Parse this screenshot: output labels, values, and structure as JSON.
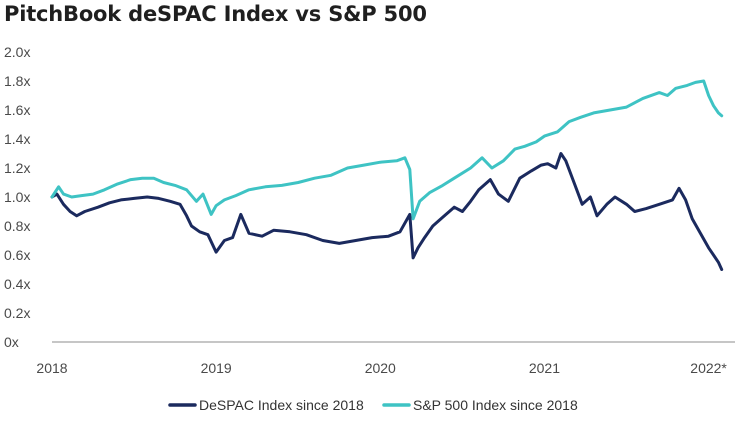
{
  "chart_data": {
    "type": "line",
    "title": "PitchBook deSPAC Index vs S&P 500",
    "xlabel": "",
    "ylabel": "",
    "xlim": [
      2018.0,
      2022.1
    ],
    "ylim": [
      0,
      2.0
    ],
    "y_ticks": [
      {
        "value": 0.0,
        "label": "0x"
      },
      {
        "value": 0.2,
        "label": "0.2x"
      },
      {
        "value": 0.4,
        "label": "0.4x"
      },
      {
        "value": 0.6,
        "label": "0.6x"
      },
      {
        "value": 0.8,
        "label": "0.8x"
      },
      {
        "value": 1.0,
        "label": "1.0x"
      },
      {
        "value": 1.2,
        "label": "1.2x"
      },
      {
        "value": 1.4,
        "label": "1.4x"
      },
      {
        "value": 1.6,
        "label": "1.6x"
      },
      {
        "value": 1.8,
        "label": "1.8x"
      },
      {
        "value": 2.0,
        "label": "2.0x"
      }
    ],
    "x_ticks": [
      {
        "value": 2018,
        "label": "2018"
      },
      {
        "value": 2019,
        "label": "2019"
      },
      {
        "value": 2020,
        "label": "2020"
      },
      {
        "value": 2021,
        "label": "2021"
      },
      {
        "value": 2022,
        "label": "2022*"
      }
    ],
    "grid": false,
    "legend_position": "bottom-center",
    "series": [
      {
        "name": "DeSPAC Index since 2018",
        "color": "#1b2a5e",
        "x": [
          2018.0,
          2018.03,
          2018.07,
          2018.11,
          2018.15,
          2018.2,
          2018.28,
          2018.35,
          2018.42,
          2018.5,
          2018.58,
          2018.65,
          2018.72,
          2018.78,
          2018.82,
          2018.85,
          2018.9,
          2018.95,
          2019.0,
          2019.05,
          2019.1,
          2019.15,
          2019.2,
          2019.28,
          2019.35,
          2019.45,
          2019.55,
          2019.65,
          2019.75,
          2019.85,
          2019.95,
          2020.05,
          2020.12,
          2020.18,
          2020.2,
          2020.23,
          2020.27,
          2020.32,
          2020.38,
          2020.45,
          2020.5,
          2020.55,
          2020.6,
          2020.67,
          2020.72,
          2020.78,
          2020.85,
          2020.92,
          2020.98,
          2021.02,
          2021.07,
          2021.1,
          2021.13,
          2021.18,
          2021.23,
          2021.28,
          2021.32,
          2021.38,
          2021.43,
          2021.5,
          2021.55,
          2021.62,
          2021.7,
          2021.78,
          2021.82,
          2021.86,
          2021.9,
          2021.95,
          2022.0,
          2022.03,
          2022.06,
          2022.08
        ],
        "values": [
          1.0,
          1.02,
          0.95,
          0.9,
          0.87,
          0.9,
          0.93,
          0.96,
          0.98,
          0.99,
          1.0,
          0.99,
          0.97,
          0.95,
          0.87,
          0.8,
          0.76,
          0.74,
          0.62,
          0.7,
          0.72,
          0.88,
          0.75,
          0.73,
          0.77,
          0.76,
          0.74,
          0.7,
          0.68,
          0.7,
          0.72,
          0.73,
          0.76,
          0.88,
          0.58,
          0.65,
          0.72,
          0.8,
          0.86,
          0.93,
          0.9,
          0.97,
          1.05,
          1.12,
          1.02,
          0.97,
          1.13,
          1.18,
          1.22,
          1.23,
          1.2,
          1.3,
          1.25,
          1.1,
          0.95,
          1.0,
          0.87,
          0.95,
          1.0,
          0.95,
          0.9,
          0.92,
          0.95,
          0.98,
          1.06,
          0.98,
          0.85,
          0.75,
          0.65,
          0.6,
          0.55,
          0.5
        ]
      },
      {
        "name": "S&P 500 Index since 2018",
        "color": "#3ec3c4",
        "x": [
          2018.0,
          2018.04,
          2018.07,
          2018.12,
          2018.18,
          2018.25,
          2018.32,
          2018.4,
          2018.48,
          2018.55,
          2018.62,
          2018.68,
          2018.75,
          2018.82,
          2018.88,
          2018.92,
          2018.97,
          2019.0,
          2019.05,
          2019.12,
          2019.2,
          2019.3,
          2019.4,
          2019.5,
          2019.6,
          2019.7,
          2019.8,
          2019.9,
          2020.0,
          2020.1,
          2020.15,
          2020.18,
          2020.2,
          2020.24,
          2020.3,
          2020.38,
          2020.45,
          2020.55,
          2020.62,
          2020.68,
          2020.75,
          2020.82,
          2020.88,
          2020.95,
          2021.0,
          2021.08,
          2021.15,
          2021.22,
          2021.3,
          2021.4,
          2021.5,
          2021.6,
          2021.7,
          2021.75,
          2021.8,
          2021.87,
          2021.92,
          2021.97,
          2022.0,
          2022.03,
          2022.06,
          2022.08
        ],
        "values": [
          1.0,
          1.07,
          1.02,
          1.0,
          1.01,
          1.02,
          1.05,
          1.09,
          1.12,
          1.13,
          1.13,
          1.1,
          1.08,
          1.05,
          0.97,
          1.02,
          0.88,
          0.94,
          0.98,
          1.01,
          1.05,
          1.07,
          1.08,
          1.1,
          1.13,
          1.15,
          1.2,
          1.22,
          1.24,
          1.25,
          1.27,
          1.19,
          0.85,
          0.97,
          1.03,
          1.08,
          1.13,
          1.2,
          1.27,
          1.2,
          1.25,
          1.33,
          1.35,
          1.38,
          1.42,
          1.45,
          1.52,
          1.55,
          1.58,
          1.6,
          1.62,
          1.68,
          1.72,
          1.7,
          1.75,
          1.77,
          1.79,
          1.8,
          1.7,
          1.63,
          1.58,
          1.56
        ]
      }
    ]
  }
}
